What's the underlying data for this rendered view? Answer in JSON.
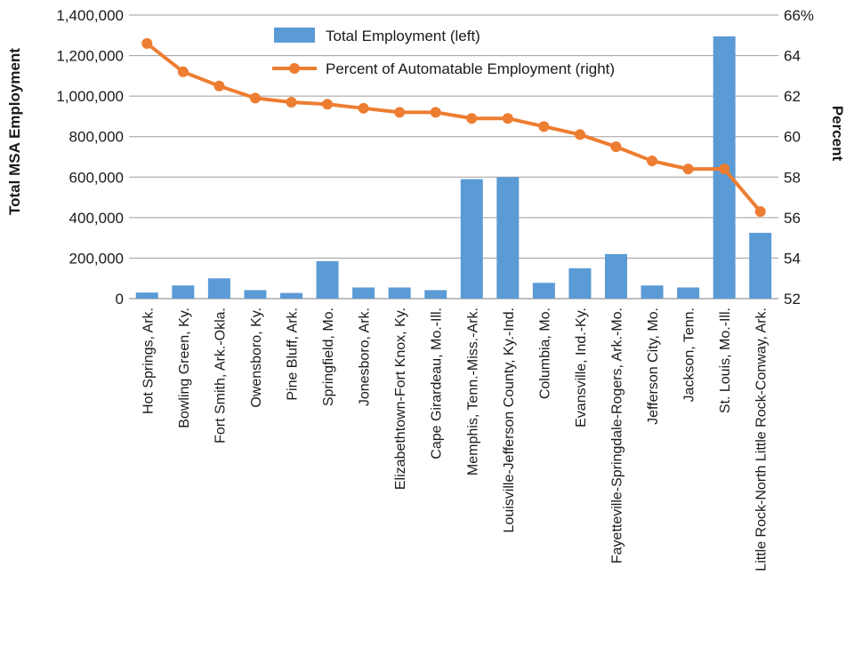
{
  "chart_data": {
    "type": "bar",
    "categories": [
      "Hot Springs, Ark.",
      "Bowling Green, Ky.",
      "Fort Smith, Ark.-Okla.",
      "Owensboro, Ky.",
      "Pine Bluff, Ark.",
      "Springfield, Mo.",
      "Jonesboro, Ark.",
      "Elizabethtown-Fort Knox, Ky.",
      "Cape Girardeau, Mo.-Ill.",
      "Memphis, Tenn.-Miss.-Ark.",
      "Louisville-Jefferson County, Ky.-Ind.",
      "Columbia, Mo.",
      "Evansville, Ind.-Ky.",
      "Fayetteville-Springdale-Rogers, Ark.-Mo.",
      "Jefferson City, Mo.",
      "Jackson, Tenn.",
      "St. Louis, Mo.-Ill.",
      "Little Rock-North Little Rock-Conway, Ark."
    ],
    "series": [
      {
        "name": "Total Employment (left)",
        "type": "bar",
        "axis": "left",
        "color": "#5b9bd5",
        "values": [
          30000,
          65000,
          100000,
          42000,
          28000,
          185000,
          55000,
          55000,
          42000,
          590000,
          600000,
          78000,
          150000,
          220000,
          65000,
          55000,
          1295000,
          325000
        ]
      },
      {
        "name": "Percent of Automatable Employment (right)",
        "type": "line",
        "axis": "right",
        "color": "#ed7d31",
        "values": [
          64.6,
          63.2,
          62.5,
          61.9,
          61.7,
          61.6,
          61.4,
          61.2,
          61.2,
          60.9,
          60.9,
          60.5,
          60.1,
          59.5,
          58.8,
          58.4,
          58.4,
          56.3
        ]
      }
    ],
    "left_axis": {
      "label": "Total MSA Employment",
      "min": 0,
      "max": 1400000,
      "ticks": [
        "0",
        "200,000",
        "400,000",
        "600,000",
        "800,000",
        "1,000,000",
        "1,200,000",
        "1,400,000"
      ]
    },
    "right_axis": {
      "label": "Percent",
      "min": 52,
      "max": 66,
      "ticks": [
        "52",
        "54",
        "56",
        "58",
        "60",
        "62",
        "64",
        "66%"
      ]
    },
    "grid": true,
    "legend_position": "top-center"
  }
}
